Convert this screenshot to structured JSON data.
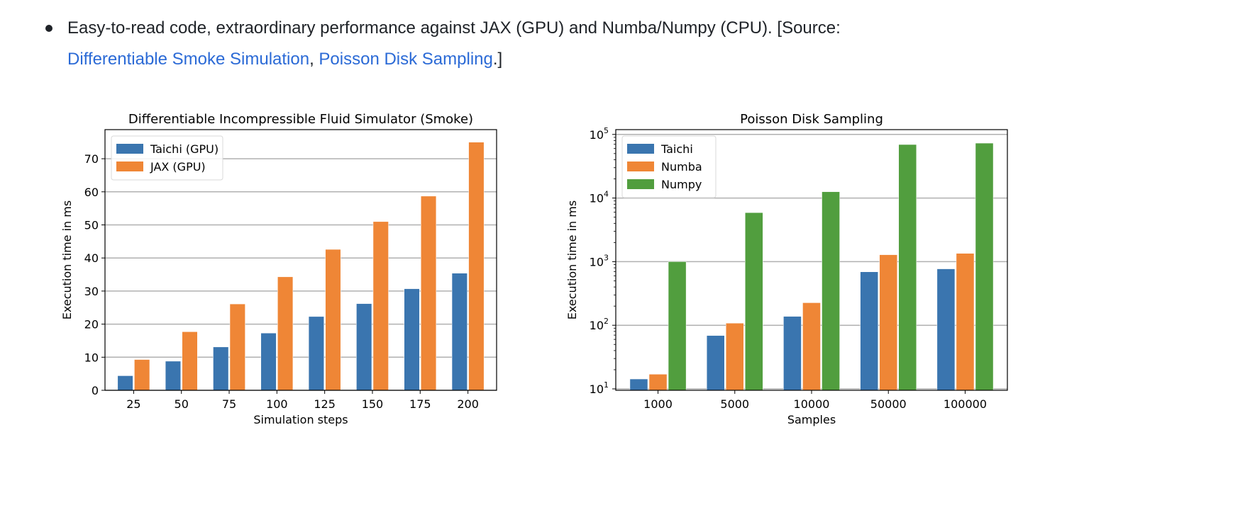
{
  "intro": {
    "text": "Easy-to-read code, extraordinary performance against JAX (GPU) and Numba/Numpy (CPU). [Source:",
    "link1": "Differentiable Smoke Simulation",
    "sep": ", ",
    "link2": "Poisson Disk Sampling",
    "end": ".]",
    "link_color": "#2b6ad6"
  },
  "chart_data": [
    {
      "type": "bar",
      "title": "Differentiable Incompressible Fluid Simulator (Smoke)",
      "xlabel": "Simulation steps",
      "ylabel": "Execution time in ms",
      "categories": [
        "25",
        "50",
        "75",
        "100",
        "125",
        "150",
        "175",
        "200"
      ],
      "series": [
        {
          "name": "Taichi (GPU)",
          "color": "#3a75af",
          "values": [
            4.4,
            8.8,
            13.1,
            17.3,
            22.3,
            26.2,
            30.7,
            35.4
          ]
        },
        {
          "name": "JAX (GPU)",
          "color": "#ef8636",
          "values": [
            9.3,
            17.7,
            26.1,
            34.3,
            42.6,
            51.0,
            58.7,
            75.0
          ]
        }
      ],
      "yticks": [
        0,
        10,
        20,
        30,
        40,
        50,
        60,
        70
      ],
      "ylim": [
        0,
        78.8
      ],
      "yscale": "linear",
      "grid": "y",
      "legend": "top-left"
    },
    {
      "type": "bar",
      "title": "Poisson Disk Sampling",
      "xlabel": "Samples",
      "ylabel": "Execution time in ms",
      "categories": [
        "1000",
        "5000",
        "10000",
        "50000",
        "100000"
      ],
      "series": [
        {
          "name": "Taichi",
          "color": "#3a75af",
          "values": [
            14.3,
            69,
            138,
            692,
            770
          ]
        },
        {
          "name": "Numba",
          "color": "#ef8636",
          "values": [
            17,
            108,
            226,
            1285,
            1350
          ]
        },
        {
          "name": "Numpy",
          "color": "#519e3e",
          "values": [
            1000,
            5900,
            12570,
            69400,
            73000
          ]
        }
      ],
      "yticks": [
        10,
        100,
        1000,
        10000,
        100000
      ],
      "ytick_labels": [
        [
          "10",
          "1"
        ],
        [
          "10",
          "2"
        ],
        [
          "10",
          "3"
        ],
        [
          "10",
          "4"
        ],
        [
          "10",
          "5"
        ]
      ],
      "ylim": [
        9.5,
        119000
      ],
      "yscale": "log",
      "grid": "y",
      "legend": "top-left"
    }
  ]
}
